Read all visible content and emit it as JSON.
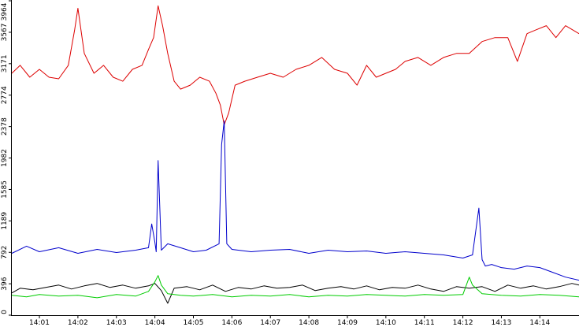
{
  "chart_data": {
    "type": "line",
    "title": "",
    "xlabel": "",
    "ylabel": "",
    "xlim": [
      "14:00:17",
      "14:15:01"
    ],
    "ylim": [
      0,
      3964
    ],
    "grid": false,
    "legend": "none",
    "y_ticks": [
      0,
      396,
      792,
      1189,
      1585,
      1982,
      2378,
      2774,
      3171,
      3567,
      3964
    ],
    "x_ticks": [
      "14:01",
      "14:02",
      "14:03",
      "14:04",
      "14:05",
      "14:06",
      "14:07",
      "14:08",
      "14:09",
      "14:10",
      "14:11",
      "14:12",
      "14:13",
      "14:14"
    ],
    "series": [
      {
        "color": "#dd0000",
        "x": [
          "14:00:17",
          "14:00:30",
          "14:00:45",
          "14:01:00",
          "14:01:15",
          "14:01:30",
          "14:01:45",
          "14:01:55",
          "14:02:00",
          "14:02:10",
          "14:02:25",
          "14:02:40",
          "14:02:55",
          "14:03:10",
          "14:03:25",
          "14:03:40",
          "14:03:50",
          "14:03:58",
          "14:04:05",
          "14:04:12",
          "14:04:20",
          "14:04:30",
          "14:04:40",
          "14:04:55",
          "14:05:10",
          "14:05:25",
          "14:05:35",
          "14:05:42",
          "14:05:48",
          "14:05:55",
          "14:06:05",
          "14:06:20",
          "14:06:40",
          "14:07:00",
          "14:07:20",
          "14:07:40",
          "14:08:00",
          "14:08:20",
          "14:08:40",
          "14:09:00",
          "14:09:15",
          "14:09:30",
          "14:09:45",
          "14:10:00",
          "14:10:15",
          "14:10:30",
          "14:10:50",
          "14:11:10",
          "14:11:30",
          "14:11:50",
          "14:12:10",
          "14:12:30",
          "14:12:50",
          "14:13:10",
          "14:13:25",
          "14:13:40",
          "14:13:55",
          "14:14:10",
          "14:14:25",
          "14:14:40",
          "14:15:01"
        ],
        "y": [
          3050,
          3150,
          3000,
          3100,
          3000,
          2980,
          3150,
          3600,
          3870,
          3300,
          3050,
          3150,
          3000,
          2950,
          3100,
          3150,
          3350,
          3500,
          3900,
          3650,
          3300,
          2950,
          2850,
          2900,
          3000,
          2950,
          2800,
          2650,
          2400,
          2550,
          2900,
          2950,
          3000,
          3050,
          3000,
          3100,
          3150,
          3250,
          3100,
          3050,
          2900,
          3150,
          3000,
          3050,
          3100,
          3200,
          3250,
          3150,
          3250,
          3300,
          3300,
          3450,
          3500,
          3500,
          3200,
          3550,
          3600,
          3650,
          3500,
          3650,
          3550
        ]
      },
      {
        "color": "#0000cc",
        "x": [
          "14:00:17",
          "14:00:40",
          "14:01:00",
          "14:01:30",
          "14:02:00",
          "14:02:30",
          "14:03:00",
          "14:03:30",
          "14:03:50",
          "14:03:55",
          "14:04:00",
          "14:04:02",
          "14:04:05",
          "14:04:10",
          "14:04:20",
          "14:04:40",
          "14:05:00",
          "14:05:20",
          "14:05:40",
          "14:05:44",
          "14:05:48",
          "14:05:52",
          "14:06:00",
          "14:06:30",
          "14:07:00",
          "14:07:30",
          "14:08:00",
          "14:08:30",
          "14:09:00",
          "14:09:30",
          "14:10:00",
          "14:10:30",
          "14:11:00",
          "14:11:30",
          "14:12:00",
          "14:12:15",
          "14:12:25",
          "14:12:30",
          "14:12:35",
          "14:12:45",
          "14:13:00",
          "14:13:20",
          "14:13:40",
          "14:14:00",
          "14:14:20",
          "14:14:40",
          "14:15:01"
        ],
        "y": [
          780,
          870,
          800,
          850,
          780,
          830,
          790,
          820,
          850,
          1150,
          920,
          800,
          1950,
          820,
          900,
          850,
          800,
          820,
          900,
          2150,
          2450,
          900,
          830,
          800,
          820,
          830,
          780,
          820,
          800,
          810,
          780,
          800,
          780,
          760,
          720,
          760,
          1350,
          700,
          620,
          640,
          600,
          580,
          620,
          600,
          540,
          480,
          440
        ]
      },
      {
        "color": "#000000",
        "x": [
          "14:00:17",
          "14:00:30",
          "14:00:50",
          "14:01:10",
          "14:01:30",
          "14:01:50",
          "14:02:10",
          "14:02:30",
          "14:02:50",
          "14:03:10",
          "14:03:30",
          "14:03:50",
          "14:04:00",
          "14:04:10",
          "14:04:20",
          "14:04:30",
          "14:04:50",
          "14:05:10",
          "14:05:30",
          "14:05:50",
          "14:06:10",
          "14:06:30",
          "14:06:50",
          "14:07:10",
          "14:07:30",
          "14:07:50",
          "14:08:10",
          "14:08:30",
          "14:08:50",
          "14:09:10",
          "14:09:30",
          "14:09:50",
          "14:10:10",
          "14:10:30",
          "14:10:50",
          "14:11:10",
          "14:11:30",
          "14:11:50",
          "14:12:10",
          "14:12:30",
          "14:12:50",
          "14:13:10",
          "14:13:30",
          "14:13:50",
          "14:14:10",
          "14:14:30",
          "14:14:50",
          "14:15:01"
        ],
        "y": [
          280,
          340,
          320,
          350,
          380,
          330,
          370,
          400,
          350,
          380,
          340,
          370,
          400,
          310,
          150,
          340,
          360,
          320,
          380,
          300,
          350,
          330,
          370,
          340,
          350,
          380,
          310,
          340,
          360,
          330,
          370,
          320,
          350,
          340,
          380,
          330,
          300,
          360,
          340,
          360,
          300,
          380,
          340,
          370,
          330,
          360,
          400,
          380
        ]
      },
      {
        "color": "#00cc00",
        "x": [
          "14:00:17",
          "14:00:40",
          "14:01:00",
          "14:01:30",
          "14:02:00",
          "14:02:30",
          "14:03:00",
          "14:03:30",
          "14:03:50",
          "14:04:00",
          "14:04:05",
          "14:04:10",
          "14:04:20",
          "14:04:40",
          "14:05:00",
          "14:05:30",
          "14:06:00",
          "14:06:30",
          "14:07:00",
          "14:07:30",
          "14:08:00",
          "14:08:30",
          "14:09:00",
          "14:09:30",
          "14:10:00",
          "14:10:30",
          "14:11:00",
          "14:11:30",
          "14:12:00",
          "14:12:10",
          "14:12:15",
          "14:12:30",
          "14:13:00",
          "14:13:30",
          "14:14:00",
          "14:14:30",
          "14:15:01"
        ],
        "y": [
          250,
          230,
          260,
          240,
          250,
          220,
          260,
          240,
          300,
          420,
          500,
          380,
          270,
          250,
          240,
          260,
          230,
          250,
          240,
          260,
          230,
          250,
          240,
          260,
          250,
          240,
          260,
          250,
          260,
          480,
          380,
          270,
          250,
          240,
          260,
          250,
          230
        ]
      }
    ]
  }
}
